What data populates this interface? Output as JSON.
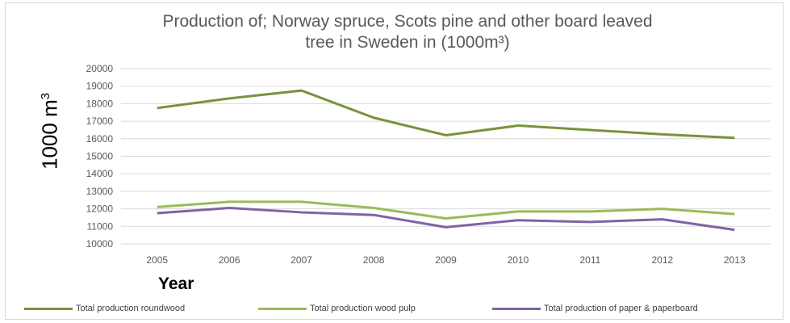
{
  "chart_data": {
    "type": "line",
    "title": "Production of; Norway spruce, Scots pine and other board leaved tree in Sweden in (1000m³)",
    "title_lines": [
      "Production of; Norway spruce, Scots pine and other board leaved",
      "tree in Sweden in (1000m³)"
    ],
    "ylabel": "1000 m",
    "ylabel_sup": "3",
    "xlabel": "Year",
    "categories": [
      "2005",
      "2006",
      "2007",
      "2008",
      "2009",
      "2010",
      "2011",
      "2012",
      "2013"
    ],
    "ylim": [
      10000,
      20000
    ],
    "yticks": [
      "10000",
      "11000",
      "12000",
      "13000",
      "14000",
      "15000",
      "16000",
      "17000",
      "18000",
      "19000",
      "20000"
    ],
    "grid": true,
    "legend_position": "bottom",
    "series": [
      {
        "name": "Total production roundwood",
        "color": "#77933c",
        "values": [
          17750,
          18300,
          18750,
          17200,
          16200,
          16750,
          16500,
          16250,
          16050
        ]
      },
      {
        "name": "Total production wood pulp",
        "color": "#9bbb59",
        "values": [
          12100,
          12400,
          12400,
          12050,
          11450,
          11850,
          11850,
          12000,
          11700
        ]
      },
      {
        "name": "Total production of paper & paperboard",
        "color": "#8064a2",
        "values": [
          11750,
          12050,
          11800,
          11650,
          10950,
          11350,
          11250,
          11400,
          10800
        ]
      }
    ]
  }
}
